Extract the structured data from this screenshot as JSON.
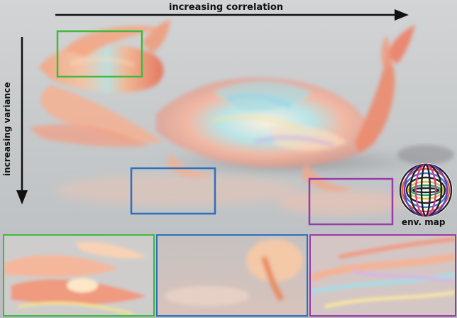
{
  "annotations": {
    "horizontal_axis": "increasing correlation",
    "vertical_axis": "increasing variance",
    "env_map": "env. map"
  },
  "colors": {
    "green": "#3dbb3d",
    "blue": "#2e6fbd",
    "purple": "#9a3aa8",
    "arrow": "#111111",
    "background": "#c9cccd"
  }
}
